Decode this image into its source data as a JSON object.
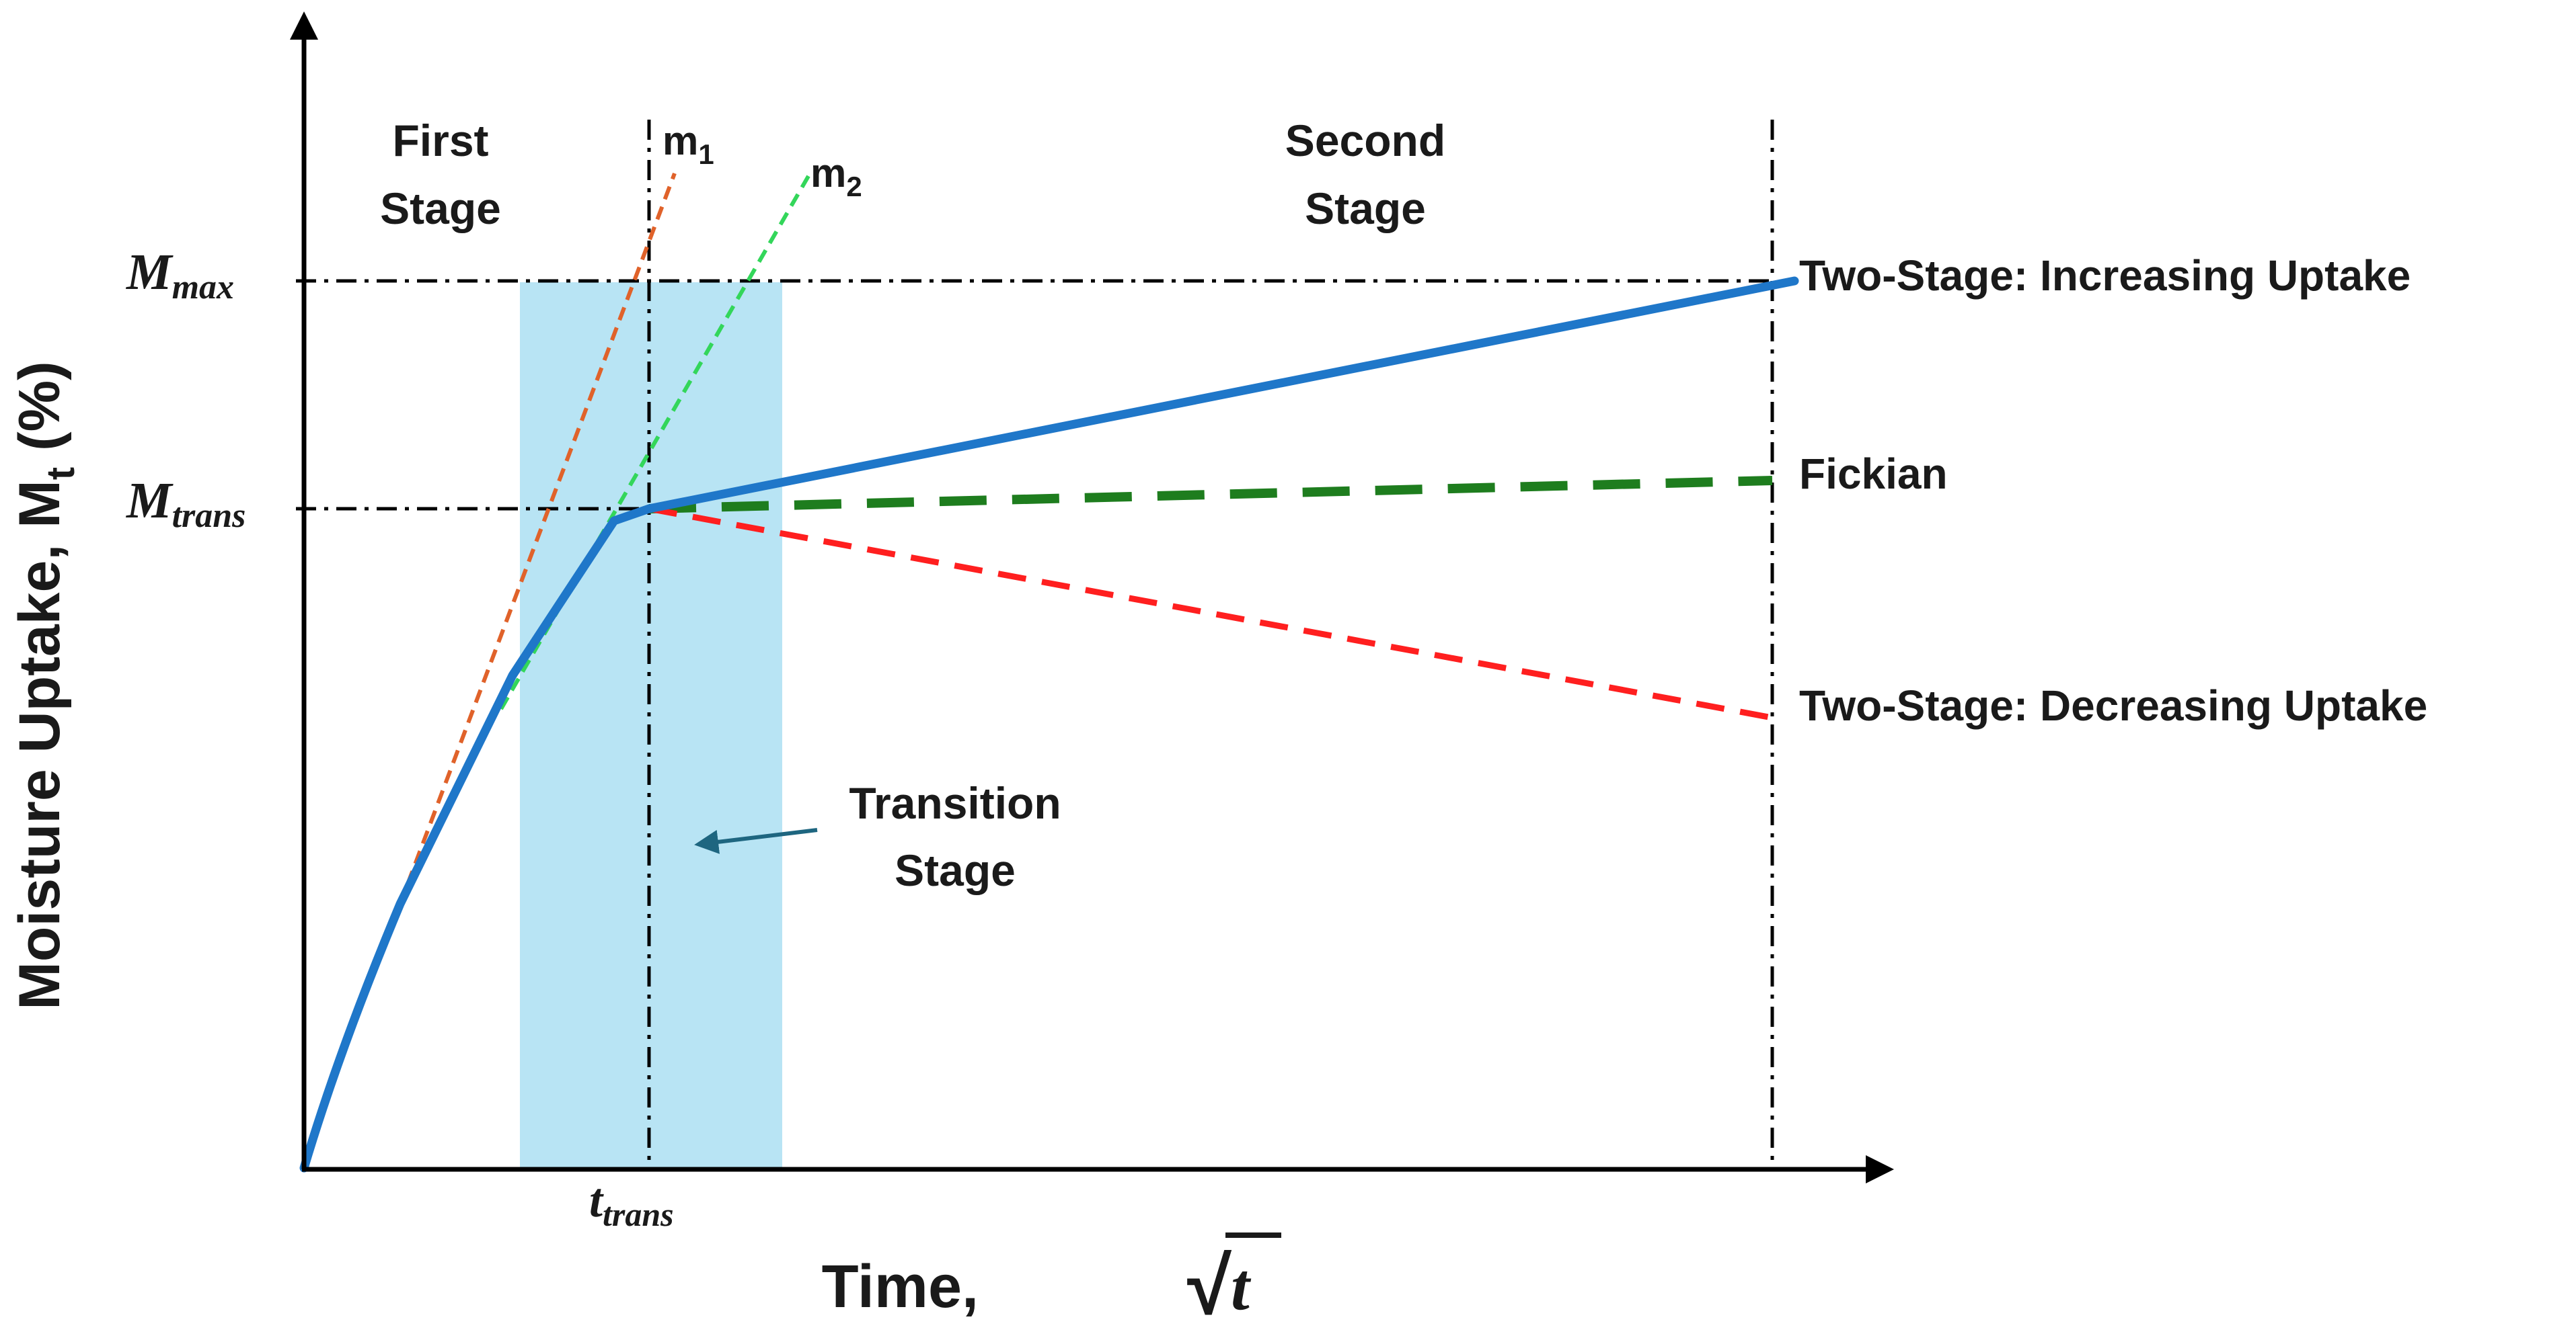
{
  "axes": {
    "y_label_main": "Moisture Uptake, M",
    "y_label_sub": "t",
    "y_label_tail": " (%)",
    "x_label_prefix": "Time, ",
    "x_label_math": "t",
    "x_label_sqrt": "√"
  },
  "levels": {
    "m_max": {
      "base": "M",
      "sub": "max"
    },
    "m_trans": {
      "base": "M",
      "sub": "trans"
    },
    "t_trans": {
      "base": "t",
      "sub": "trans"
    }
  },
  "stages": {
    "first_line1": "First",
    "first_line2": "Stage",
    "second_line1": "Second",
    "second_line2": "Stage",
    "transition_line1": "Transition",
    "transition_line2": "Stage"
  },
  "slopes": {
    "m1": {
      "base": "m",
      "sub": "1"
    },
    "m2": {
      "base": "m",
      "sub": "2"
    }
  },
  "curves": {
    "increasing": "Two-Stage: Increasing Uptake",
    "fickian": "Fickian",
    "decreasing": "Two-Stage: Decreasing Uptake"
  },
  "colors": {
    "blue_curve": "#1f77c9",
    "fickian_green": "#1e7d1e",
    "decreasing_red": "#ff1f1f",
    "m1_orange": "#e0622a",
    "m2_green": "#33d65a",
    "transition_band": "#b8e4f4",
    "arrow_teal": "#1e6680"
  }
}
